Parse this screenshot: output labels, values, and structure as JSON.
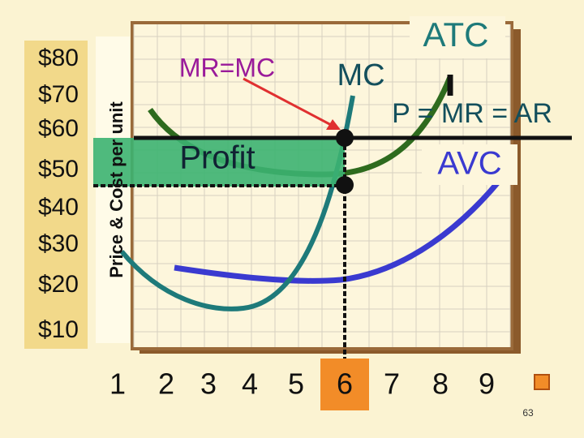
{
  "y_axis": {
    "title": "Price & Cost per unit",
    "labels": [
      "$80",
      "$70",
      "$60",
      "$50",
      "$40",
      "$30",
      "$20",
      "$10"
    ]
  },
  "x_axis": {
    "labels": [
      "1",
      "2",
      "3",
      "4",
      "5",
      "6",
      "7",
      "8",
      "9"
    ]
  },
  "annotations": {
    "mr_mc": "MR=MC",
    "mc": "MC",
    "atc": "ATC",
    "price_line": "P = MR = AR",
    "profit": "Profit",
    "avc": "AVC"
  },
  "page_number": "63"
}
